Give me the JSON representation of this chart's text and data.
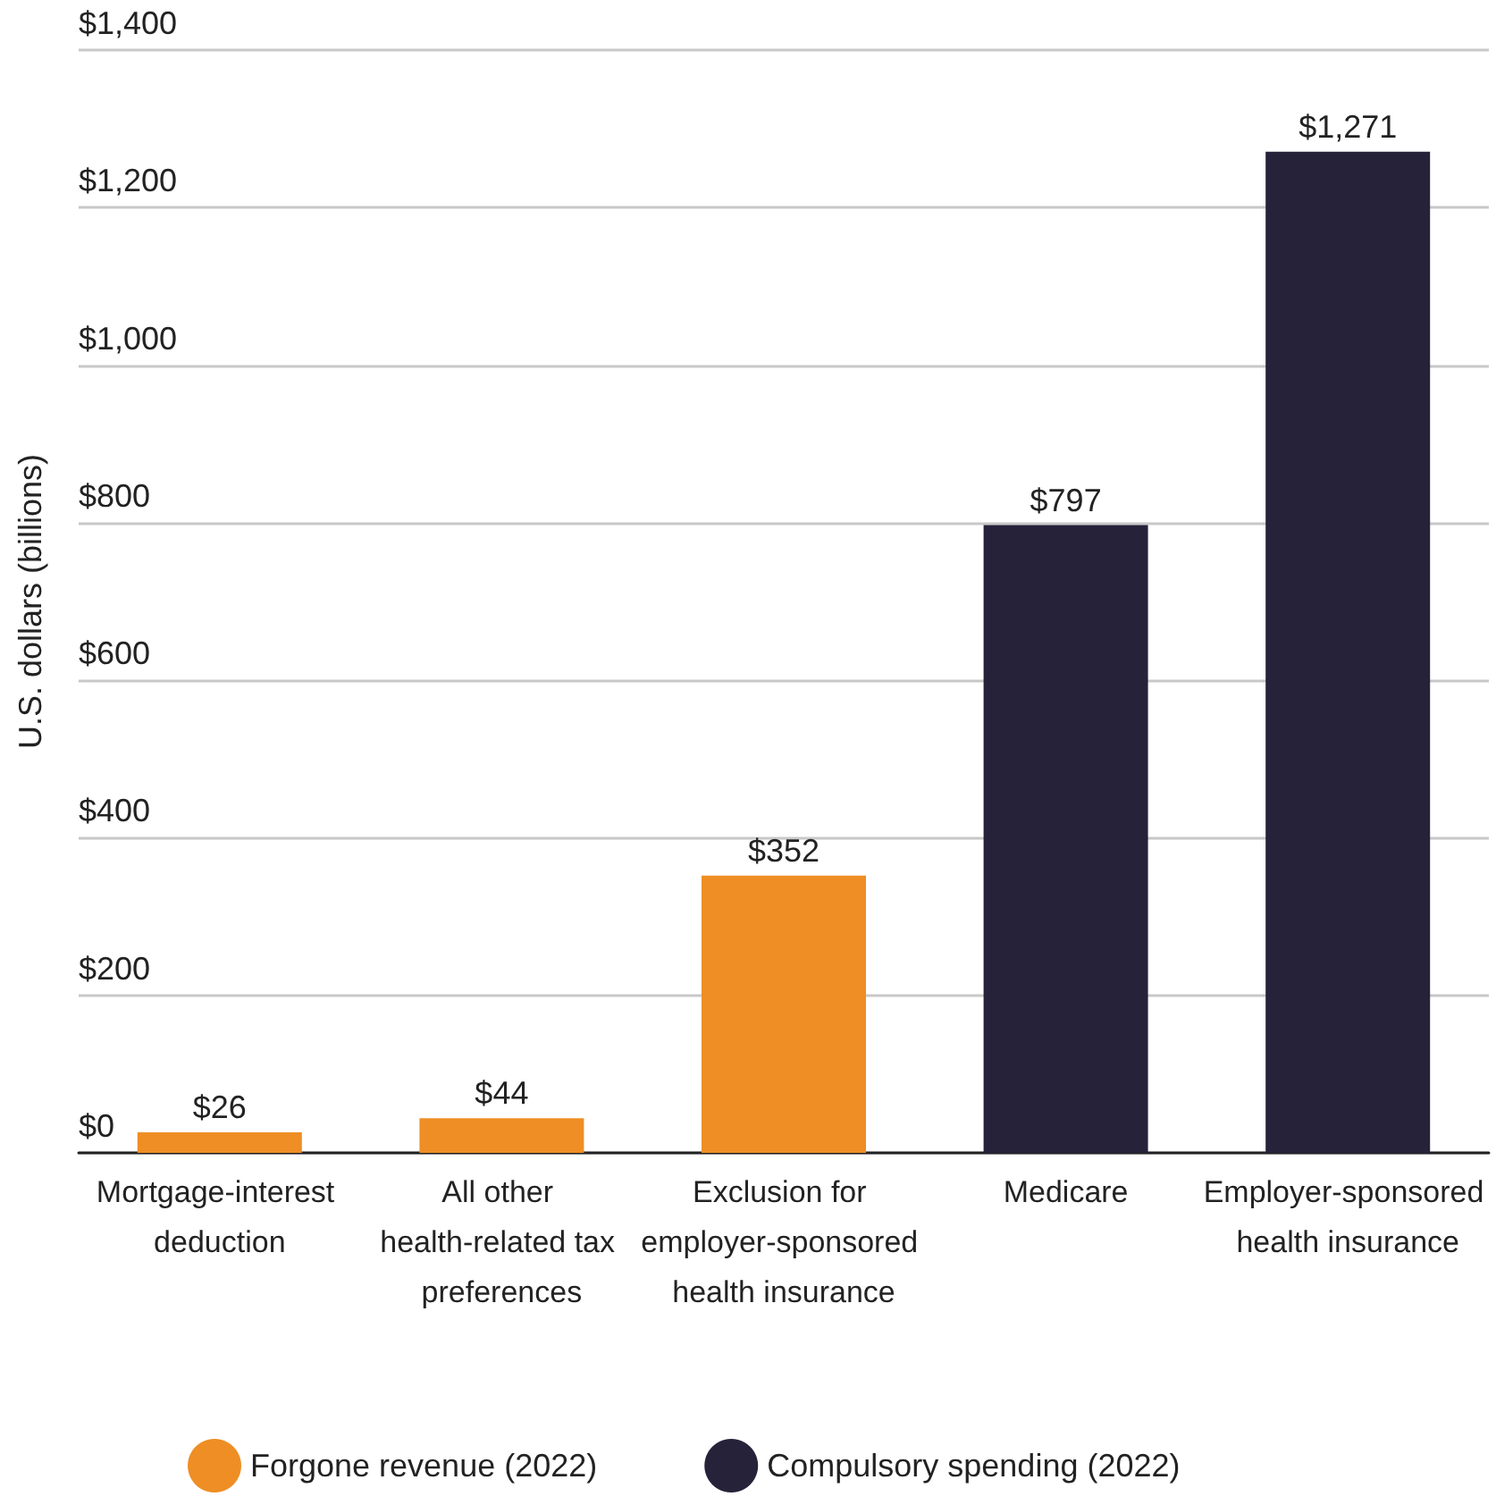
{
  "chart_data": {
    "type": "bar",
    "ylabel": "U.S. dollars (billions)",
    "categories": [
      "Mortgage-interest deduction",
      "All other health-related tax preferences",
      "Exclusion for employer-sponsored health insurance",
      "Medicare",
      "Employer-sponsored health insurance"
    ],
    "series": [
      {
        "name": "Forgone revenue (2022)",
        "color": "#ee8e24",
        "values": [
          26,
          44,
          352,
          null,
          null
        ],
        "value_labels": [
          "$26",
          "$44",
          "$352",
          null,
          null
        ]
      },
      {
        "name": "Compulsory spending (2022)",
        "color": "#26223a",
        "values": [
          null,
          null,
          null,
          797,
          1271
        ],
        "value_labels": [
          null,
          null,
          null,
          "$797",
          "$1,271"
        ]
      }
    ],
    "stacked": true,
    "ylim": [
      0,
      1400
    ],
    "yticks": [
      {
        "value": 0,
        "label": "$0"
      },
      {
        "value": 200,
        "label": "$200"
      },
      {
        "value": 400,
        "label": "$400"
      },
      {
        "value": 600,
        "label": "$600"
      },
      {
        "value": 800,
        "label": "$800"
      },
      {
        "value": 1000,
        "label": "$1,000"
      },
      {
        "value": 1200,
        "label": "$1,200"
      },
      {
        "value": 1400,
        "label": "$1,400"
      }
    ],
    "grid": "y",
    "legend": "bottom"
  }
}
